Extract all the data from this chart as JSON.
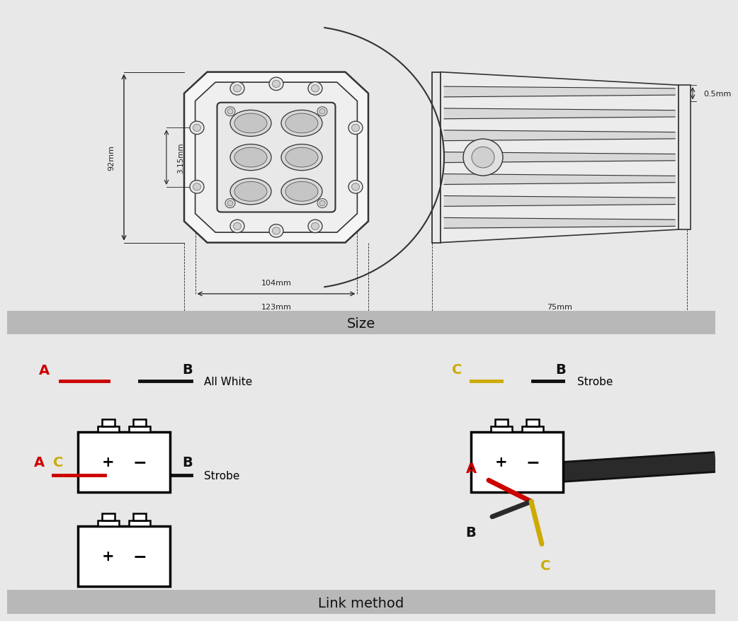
{
  "top_bg": "#ffffff",
  "bottom_bg": "#ffffff",
  "footer_bg": "#b8b8b8",
  "overall_bg": "#e8e8e8",
  "size_label": "Size",
  "link_label": "Link method",
  "dim_92": "92mm",
  "dim_315": "3.15mm",
  "dim_104": "104mm",
  "dim_123": "123mm",
  "dim_75": "75mm",
  "dim_05": "0.5mm",
  "wire_red": "#cc0000",
  "wire_yellow": "#ccaa00",
  "wire_black": "#111111",
  "label_A_color": "#cc0000",
  "label_B_color": "#111111",
  "label_C_color": "#ccaa00",
  "all_white_text": "All White",
  "strobe_text": "Strobe",
  "line_color": "#333333",
  "dim_line_color": "#222222"
}
